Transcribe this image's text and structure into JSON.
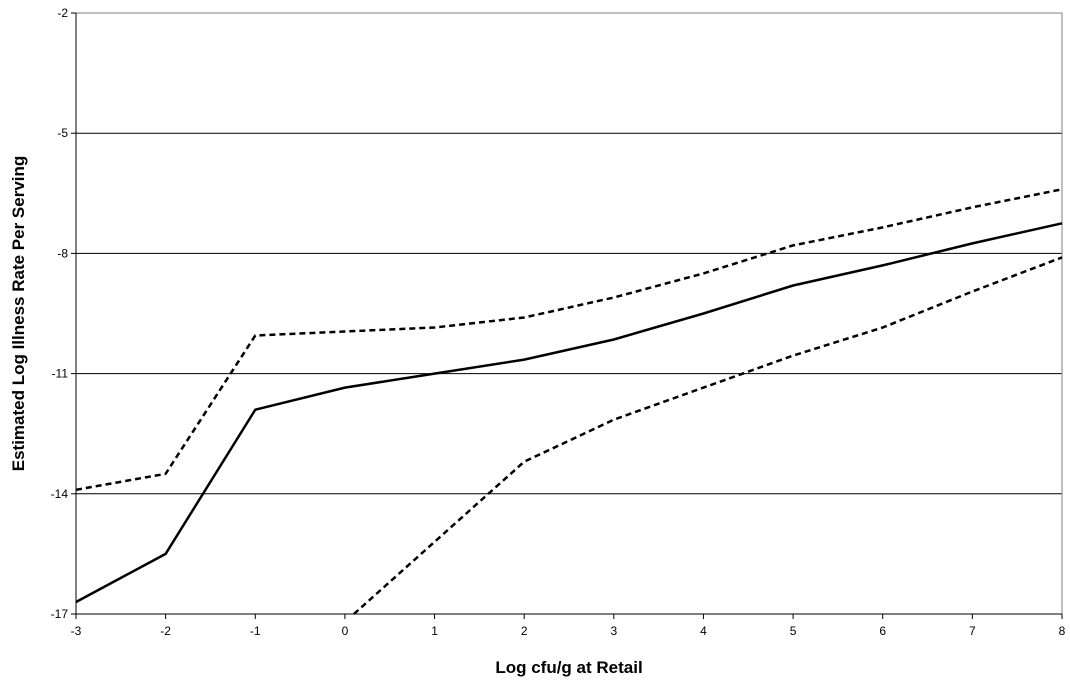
{
  "chart_data": {
    "type": "line",
    "title": "",
    "xlabel": "Log cfu/g at Retail",
    "ylabel": "Estimated Log Illness Rate Per Serving",
    "xlim": [
      -3,
      8
    ],
    "ylim": [
      -17,
      -2
    ],
    "x_ticks": [
      -3,
      -2,
      -1,
      0,
      1,
      2,
      3,
      4,
      5,
      6,
      7,
      8
    ],
    "y_ticks": [
      -17,
      -14,
      -11,
      -8,
      -5,
      -2
    ],
    "grid": "horizontal",
    "legend": "none",
    "series": [
      {
        "style": "solid",
        "color": "#000000",
        "points": [
          [
            -3,
            -16.7
          ],
          [
            -2,
            -15.5
          ],
          [
            -1,
            -11.9
          ],
          [
            0,
            -11.35
          ],
          [
            1,
            -11.0
          ],
          [
            2,
            -10.65
          ],
          [
            3,
            -10.15
          ],
          [
            4,
            -9.5
          ],
          [
            5,
            -8.8
          ],
          [
            6,
            -8.3
          ],
          [
            7,
            -7.75
          ],
          [
            8,
            -7.25
          ]
        ]
      },
      {
        "style": "dashed",
        "color": "#000000",
        "points": [
          [
            -3,
            -13.9
          ],
          [
            -2,
            -13.5
          ],
          [
            -1,
            -10.05
          ],
          [
            0,
            -9.95
          ],
          [
            1,
            -9.85
          ],
          [
            2,
            -9.6
          ],
          [
            3,
            -9.1
          ],
          [
            4,
            -8.5
          ],
          [
            5,
            -7.8
          ],
          [
            6,
            -7.35
          ],
          [
            7,
            -6.85
          ],
          [
            8,
            -6.4
          ]
        ]
      },
      {
        "style": "dashed",
        "color": "#000000",
        "points": [
          [
            0.1,
            -17.0
          ],
          [
            1,
            -15.2
          ],
          [
            2,
            -13.2
          ],
          [
            3,
            -12.15
          ],
          [
            4,
            -11.35
          ],
          [
            5,
            -10.55
          ],
          [
            6,
            -9.85
          ],
          [
            7,
            -8.95
          ],
          [
            8,
            -8.1
          ]
        ]
      }
    ]
  }
}
